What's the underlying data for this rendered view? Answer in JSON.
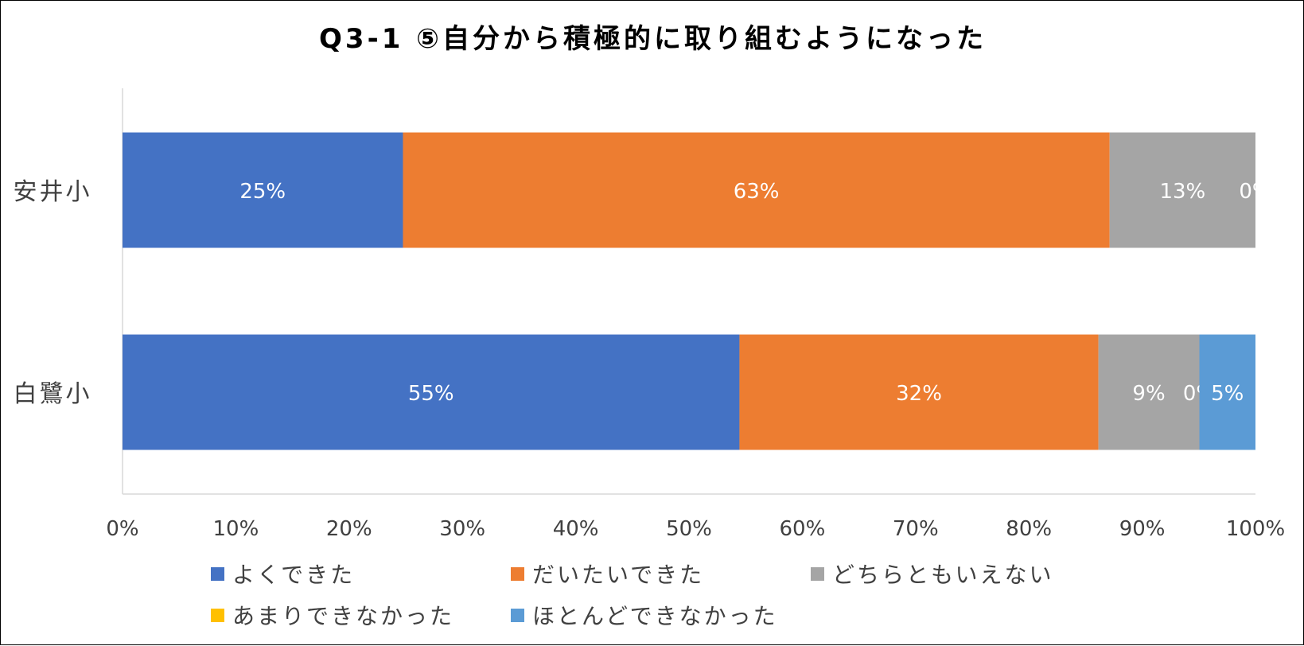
{
  "chart_data": {
    "type": "bar",
    "orientation": "horizontal",
    "stacked": "percent",
    "title": "Q3-1 ⑤自分から積極的に取り組むようになった",
    "categories": [
      "安井小",
      "白鷺小"
    ],
    "series": [
      {
        "name": "よくできた",
        "color": "#4472C4",
        "values": [
          25,
          55
        ],
        "labels": [
          "25%",
          "55%"
        ]
      },
      {
        "name": "だいたいできた",
        "color": "#ED7D31",
        "values": [
          63,
          32
        ],
        "labels": [
          "63%",
          "32%"
        ]
      },
      {
        "name": "どちらともいえない",
        "color": "#A5A5A5",
        "values": [
          13,
          9
        ],
        "labels": [
          "13%",
          "9%"
        ]
      },
      {
        "name": "あまりできなかった",
        "color": "#FFC000",
        "values": [
          0,
          0
        ],
        "labels": [
          "0%",
          "0%"
        ]
      },
      {
        "name": "ほとんどできなかった",
        "color": "#5B9BD5",
        "values": [
          0,
          5
        ],
        "labels": [
          "",
          "5%"
        ]
      }
    ],
    "xlim": [
      0,
      100
    ],
    "x_ticks": [
      "0%",
      "10%",
      "20%",
      "30%",
      "40%",
      "50%",
      "60%",
      "70%",
      "80%",
      "90%",
      "100%"
    ],
    "grid": false,
    "legend_position": "bottom"
  }
}
